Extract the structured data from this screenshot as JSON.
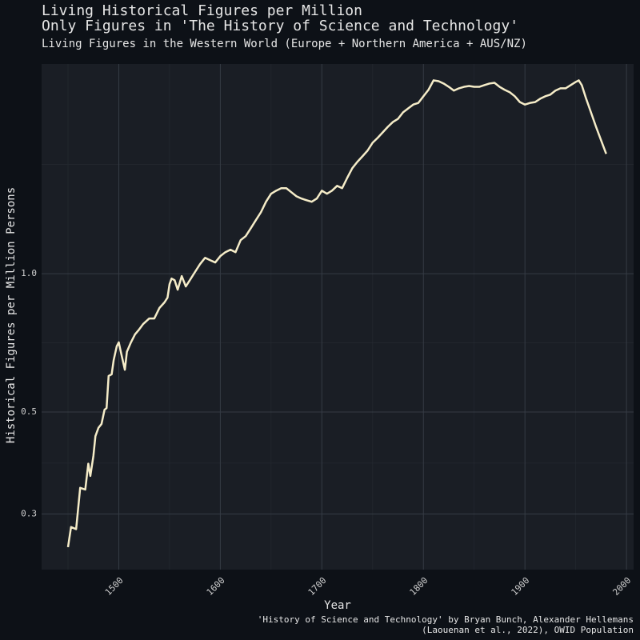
{
  "chart_data": {
    "type": "line",
    "title": [
      "Living Historical Figures per Million",
      "Only Figures in 'The History of Science and Technology'"
    ],
    "subtitle": "Living Figures in the Western World (Europe + Northern America + AUS/NZ)",
    "x_label": "Year",
    "y_label": "Historical Figures per Million Persons",
    "caption": [
      "'History of Science and Technology' by Bryan Bunch, Alexander Hellemans",
      "(Laouenan et al., 2022), OWID Population"
    ],
    "color": "#f5ecc8",
    "log_y": true,
    "grid": true,
    "xlim": [
      1424,
      2007
    ],
    "xticks": [
      1500,
      1600,
      1700,
      1800,
      1900,
      2000
    ],
    "x_minor_grid": [
      1450,
      1550,
      1650,
      1750,
      1850,
      1950
    ],
    "ylim": [
      0.227,
      2.86
    ],
    "yticks": [
      0.3,
      0.5,
      {
        "value": 1,
        "label": "1.0"
      }
    ],
    "y_minor_grid": [
      0.387,
      0.707,
      1.73
    ],
    "x": [
      1450,
      1453,
      1458,
      1462,
      1467,
      1470,
      1472,
      1475,
      1477,
      1480,
      1483,
      1486,
      1488,
      1490,
      1493,
      1495,
      1498,
      1500,
      1502,
      1506,
      1508,
      1512,
      1516,
      1520,
      1524,
      1530,
      1535,
      1540,
      1545,
      1548,
      1550,
      1552,
      1555,
      1558,
      1562,
      1566,
      1570,
      1575,
      1580,
      1585,
      1590,
      1595,
      1600,
      1605,
      1610,
      1615,
      1620,
      1625,
      1630,
      1635,
      1640,
      1645,
      1650,
      1655,
      1660,
      1665,
      1670,
      1675,
      1680,
      1685,
      1690,
      1695,
      1700,
      1705,
      1710,
      1715,
      1720,
      1725,
      1730,
      1735,
      1740,
      1745,
      1750,
      1755,
      1760,
      1765,
      1770,
      1775,
      1780,
      1785,
      1790,
      1795,
      1800,
      1805,
      1810,
      1815,
      1820,
      1825,
      1830,
      1835,
      1840,
      1845,
      1850,
      1855,
      1860,
      1865,
      1870,
      1875,
      1880,
      1885,
      1890,
      1895,
      1900,
      1905,
      1910,
      1915,
      1920,
      1925,
      1930,
      1935,
      1940,
      1945,
      1950,
      1953,
      1956,
      1960,
      1965,
      1970,
      1975,
      1980
    ],
    "values": [
      0.254,
      0.281,
      0.278,
      0.342,
      0.339,
      0.386,
      0.363,
      0.401,
      0.443,
      0.462,
      0.471,
      0.506,
      0.51,
      0.599,
      0.604,
      0.649,
      0.695,
      0.709,
      0.676,
      0.618,
      0.676,
      0.709,
      0.738,
      0.756,
      0.777,
      0.799,
      0.799,
      0.842,
      0.866,
      0.887,
      0.949,
      0.976,
      0.968,
      0.923,
      0.988,
      0.938,
      0.968,
      1.008,
      1.049,
      1.083,
      1.07,
      1.058,
      1.092,
      1.114,
      1.128,
      1.114,
      1.183,
      1.207,
      1.256,
      1.308,
      1.361,
      1.434,
      1.493,
      1.516,
      1.535,
      1.535,
      1.504,
      1.474,
      1.457,
      1.445,
      1.434,
      1.457,
      1.516,
      1.493,
      1.516,
      1.553,
      1.535,
      1.617,
      1.697,
      1.752,
      1.801,
      1.853,
      1.928,
      1.976,
      2.031,
      2.088,
      2.139,
      2.173,
      2.245,
      2.289,
      2.334,
      2.353,
      2.433,
      2.513,
      2.635,
      2.624,
      2.593,
      2.551,
      2.503,
      2.532,
      2.551,
      2.561,
      2.551,
      2.551,
      2.572,
      2.593,
      2.603,
      2.551,
      2.513,
      2.483,
      2.433,
      2.363,
      2.334,
      2.353,
      2.363,
      2.403,
      2.433,
      2.453,
      2.503,
      2.532,
      2.532,
      2.572,
      2.614,
      2.635,
      2.572,
      2.413,
      2.245,
      2.088,
      1.951,
      1.823
    ]
  }
}
